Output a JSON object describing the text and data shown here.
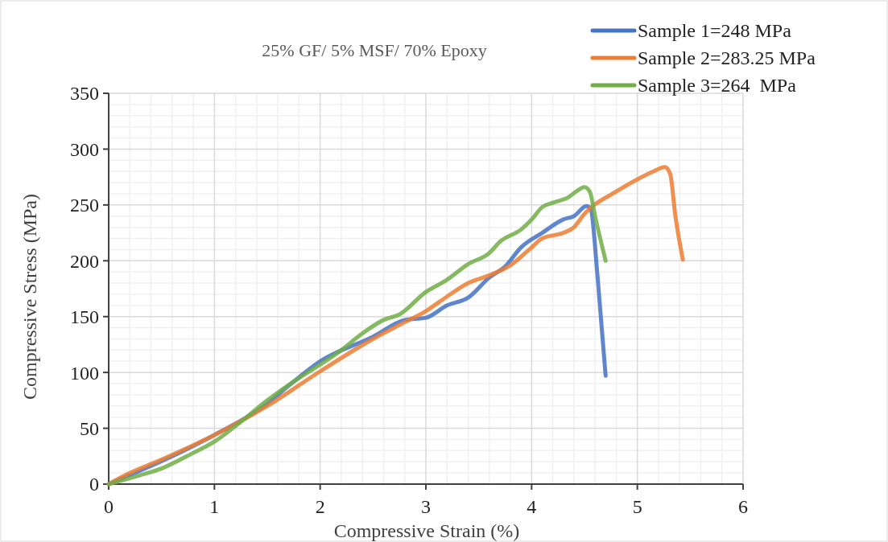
{
  "chart_data": {
    "type": "line",
    "title": "25% GF/ 5% MSF/ 70% Epoxy",
    "xlabel": "Compressive Strain (%)",
    "ylabel": "Compressive Stress (MPa)",
    "xlim": [
      0,
      6
    ],
    "xticks": [
      0,
      1,
      2,
      3,
      4,
      5,
      6
    ],
    "ylim": [
      0,
      350
    ],
    "yticks": [
      0,
      50,
      100,
      150,
      200,
      250,
      300,
      350
    ],
    "grid": true,
    "legend": "top right",
    "marker": "none",
    "line_style": "solid",
    "series": [
      {
        "name": "Sample 1=248 MPa",
        "color": "#4472c4",
        "x": [
          0,
          1,
          1.5,
          1.7,
          2,
          2.5,
          2.8,
          3,
          3.2,
          3.4,
          3.6,
          3.75,
          3.9,
          4.1,
          4.3,
          4.4,
          4.52,
          4.56,
          4.62,
          4.7
        ],
        "values": [
          0,
          44,
          72,
          88,
          110,
          132,
          147,
          149,
          160,
          167,
          185,
          195,
          212,
          225,
          237,
          240,
          249,
          246,
          190,
          97
        ]
      },
      {
        "name": "Sample 2=283.25 MPa",
        "color": "#ed7d31",
        "x": [
          0,
          0.2,
          0.5,
          1,
          1.5,
          2,
          2.5,
          2.8,
          3,
          3.2,
          3.4,
          3.6,
          3.8,
          4,
          4.1,
          4.3,
          4.4,
          4.5,
          4.8,
          5,
          5.15,
          5.26,
          5.31,
          5.36,
          5.43
        ],
        "values": [
          0,
          10,
          22,
          44,
          70,
          101,
          130,
          145,
          155,
          168,
          180,
          187,
          196,
          212,
          220,
          225,
          230,
          242,
          262,
          273,
          280,
          284,
          278,
          240,
          201
        ]
      },
      {
        "name": "Sample 3=264  MPa",
        "color": "#70ad47",
        "x": [
          0,
          0.3,
          0.5,
          0.8,
          1,
          1.2,
          1.5,
          1.8,
          2,
          2.2,
          2.4,
          2.6,
          2.75,
          3,
          3.2,
          3.4,
          3.6,
          3.7,
          3.9,
          4,
          4.1,
          4.2,
          4.35,
          4.42,
          4.5,
          4.55,
          4.6,
          4.7
        ],
        "values": [
          0,
          8,
          14,
          28,
          38,
          52,
          75,
          95,
          107,
          120,
          135,
          147,
          152,
          172,
          183,
          197,
          207,
          217,
          228,
          237,
          248,
          252,
          257,
          262,
          266,
          262,
          240,
          200
        ]
      }
    ]
  }
}
